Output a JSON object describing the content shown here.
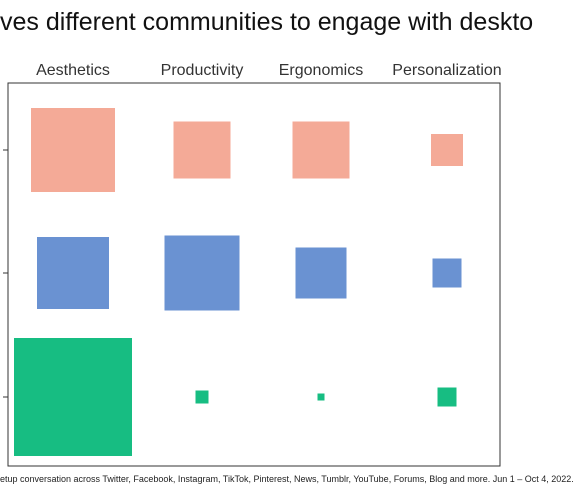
{
  "page": {
    "title": "ves different communities to engage with deskto",
    "footer": "etup conversation across Twitter, Facebook, Instagram, TikTok, Pinterest, News, Tumblr, YouTube, Forums, Blog and more.  Jun 1 – Oct 4, 2022."
  },
  "chart_data": {
    "type": "heatmap",
    "title": "ves different communities to engage with deskto",
    "x_categories": [
      "Aesthetics",
      "Productivity",
      "Ergonomics",
      "Personalization"
    ],
    "rows": [
      {
        "color": "#f4aa97",
        "values": [
          84,
          57,
          57,
          32
        ]
      },
      {
        "color": "#6a92d2",
        "values": [
          72,
          75,
          51,
          29
        ]
      },
      {
        "color": "#17bd82",
        "values": [
          118,
          13,
          7,
          19
        ]
      }
    ],
    "value_meaning": "relative square size (side length, same scale across all cells)",
    "grid": false,
    "legend": "none"
  }
}
